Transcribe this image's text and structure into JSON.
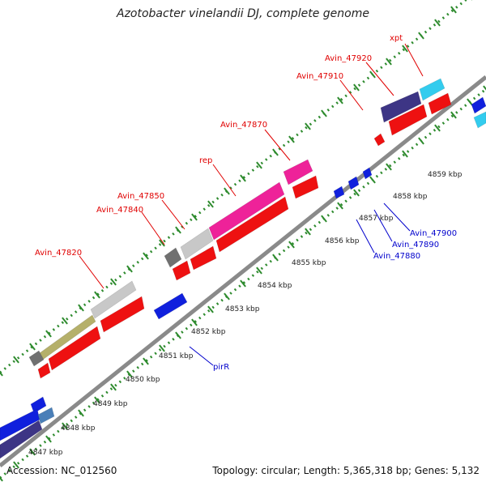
{
  "title": "Azotobacter vinelandii DJ, complete genome",
  "footer": {
    "accession": "Accession: NC_012560",
    "stats": "Topology: circular; Length: 5,365,318 bp; Genes: 5,132"
  },
  "colors": {
    "backbone": "#8a8a8a",
    "tick": "#2e8b2e",
    "fwd_label": "#e00000",
    "rev_label": "#0000cc",
    "cds_red": "#ee1111",
    "cds_blue": "#1020dd",
    "pink": "#ee2299",
    "gray_light": "#c8c8c8",
    "gray_dark": "#707070",
    "olive": "#b5b06a",
    "navy": "#3d3585",
    "cyan": "#33ccee",
    "steel": "#4a7fb8"
  },
  "ticks": [
    "4847 kbp",
    "4848 kbp",
    "4849 kbp",
    "4850 kbp",
    "4851 kbp",
    "4852 kbp",
    "4853 kbp",
    "4854 kbp",
    "4855 kbp",
    "4856 kbp",
    "4857 kbp",
    "4858 kbp",
    "4859 kbp"
  ],
  "labels": {
    "fwd": [
      "xpt",
      "Avin_47920",
      "Avin_47910",
      "Avin_47870",
      "rep",
      "Avin_47850",
      "Avin_47840",
      "Avin_47820"
    ],
    "rev": [
      "Avin_47900",
      "Avin_47890",
      "Avin_47880",
      "pirR"
    ]
  }
}
